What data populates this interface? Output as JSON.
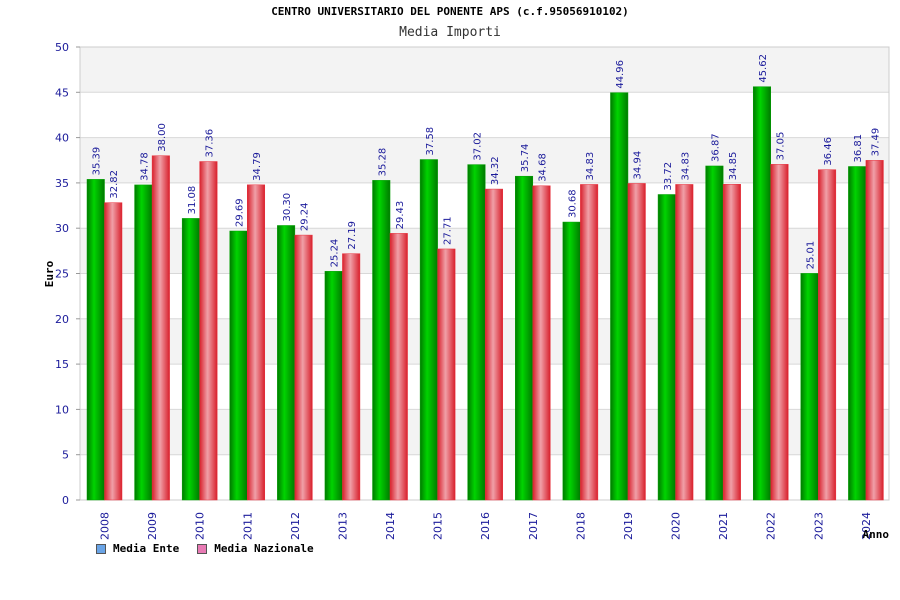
{
  "title": "CENTRO UNIVERSITARIO DEL PONENTE APS (c.f.95056910102)",
  "subtitle": "Media Importi",
  "chart_data": {
    "type": "bar",
    "xlabel": "Anno",
    "ylabel": "Euro",
    "ylim": [
      0,
      50
    ],
    "yticks": [
      0,
      5,
      10,
      15,
      20,
      25,
      30,
      35,
      40,
      45,
      50
    ],
    "grid": "horizontal bands",
    "legend_position": "bottom-left",
    "categories": [
      "2008",
      "2009",
      "2010",
      "2011",
      "2012",
      "2013",
      "2014",
      "2015",
      "2016",
      "2017",
      "2018",
      "2019",
      "2020",
      "2021",
      "2022",
      "2023",
      "2024"
    ],
    "series": [
      {
        "name": "Media Ente",
        "color": "#00a000",
        "legend_color": "#6aa4e6",
        "values": [
          35.39,
          34.78,
          31.08,
          29.69,
          30.3,
          25.24,
          35.28,
          37.58,
          37.02,
          35.74,
          30.68,
          44.96,
          33.72,
          36.87,
          45.62,
          25.01,
          36.81
        ],
        "labels": [
          "35.39",
          "34.78",
          "31.08",
          "29.69",
          "30.30",
          "25.24",
          "35.28",
          "37.58",
          "37.02",
          "35.74",
          "30.68",
          "44.96",
          "33.72",
          "36.87",
          "45.62",
          "25.01",
          "36.81"
        ]
      },
      {
        "name": "Media Nazionale",
        "color": "#e8303c",
        "legend_color": "#e87ab4",
        "values": [
          32.82,
          38.0,
          37.36,
          34.79,
          29.24,
          27.19,
          29.43,
          27.71,
          34.32,
          34.68,
          34.83,
          34.94,
          34.83,
          34.85,
          37.05,
          36.46,
          37.49
        ],
        "labels": [
          "32.82",
          "38.00",
          "37.36",
          "34.79",
          "29.24",
          "27.19",
          "29.43",
          "27.71",
          "34.32",
          "34.68",
          "34.83",
          "34.94",
          "34.83",
          "34.85",
          "37.05",
          "36.46",
          "37.49"
        ]
      }
    ]
  }
}
